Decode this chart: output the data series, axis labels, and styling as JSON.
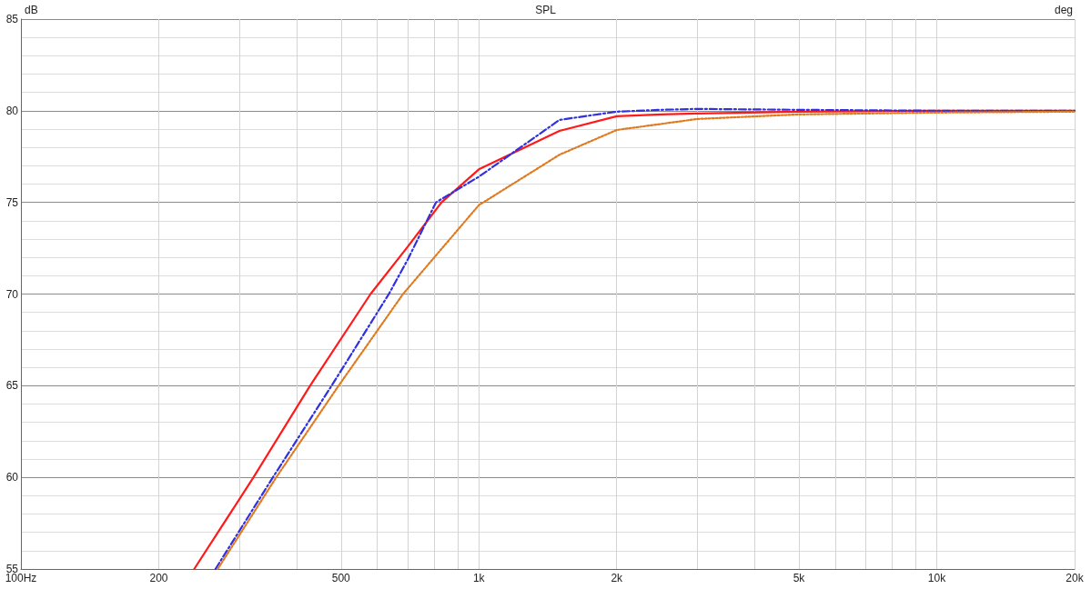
{
  "chart_data": {
    "type": "line",
    "title": "SPL",
    "ylabel": "dB",
    "y2label": "deg",
    "xlim": [
      100,
      20000
    ],
    "ylim": [
      55,
      85
    ],
    "log": "x",
    "grid": true,
    "marker": "none",
    "xticks": [
      {
        "value": 100,
        "label": "100Hz"
      },
      200,
      {
        "value": 300,
        "label": null
      },
      {
        "value": 400,
        "label": null
      },
      500,
      {
        "value": 600,
        "label": null
      },
      {
        "value": 700,
        "label": null
      },
      {
        "value": 800,
        "label": null
      },
      {
        "value": 900,
        "label": null
      },
      {
        "value": 1000,
        "label": "1k"
      },
      {
        "value": 2000,
        "label": "2k"
      },
      {
        "value": 3000,
        "label": null
      },
      {
        "value": 4000,
        "label": null
      },
      {
        "value": 5000,
        "label": "5k"
      },
      {
        "value": 6000,
        "label": null
      },
      {
        "value": 7000,
        "label": null
      },
      {
        "value": 8000,
        "label": null
      },
      {
        "value": 9000,
        "label": null
      },
      {
        "value": 10000,
        "label": "10k"
      },
      {
        "value": 20000,
        "label": "20k"
      }
    ],
    "yticks": [
      55,
      60,
      65,
      70,
      75,
      80,
      85
    ],
    "series": [
      {
        "color": "#ff1a1a",
        "line_style": "solid",
        "x": [
          239,
          322,
          428,
          580,
          700,
          829,
          1000,
          1500,
          2000,
          2500,
          3000,
          5000,
          10000,
          20000
        ],
        "values": [
          55,
          60,
          65,
          70,
          72.6,
          75,
          76.8,
          78.9,
          79.7,
          79.8,
          79.85,
          79.95,
          80,
          80
        ]
      },
      {
        "color": "#3030e0",
        "line_style": "dashed",
        "x": [
          266,
          355,
          477,
          636,
          700,
          806,
          1000,
          1500,
          2000,
          2500,
          3000,
          5000,
          10000,
          20000
        ],
        "values": [
          55,
          60,
          65,
          70,
          71.9,
          75,
          76.4,
          79.5,
          79.95,
          80.05,
          80.1,
          80.05,
          80,
          80
        ]
      },
      {
        "color": "#e07a20",
        "line_style": "dotted",
        "x": [
          269,
          361,
          494,
          683,
          1000,
          1500,
          2000,
          3000,
          5000,
          10000,
          20000
        ],
        "values": [
          55,
          60,
          65,
          70,
          74.85,
          77.6,
          78.95,
          79.55,
          79.8,
          79.9,
          79.95
        ]
      }
    ]
  }
}
